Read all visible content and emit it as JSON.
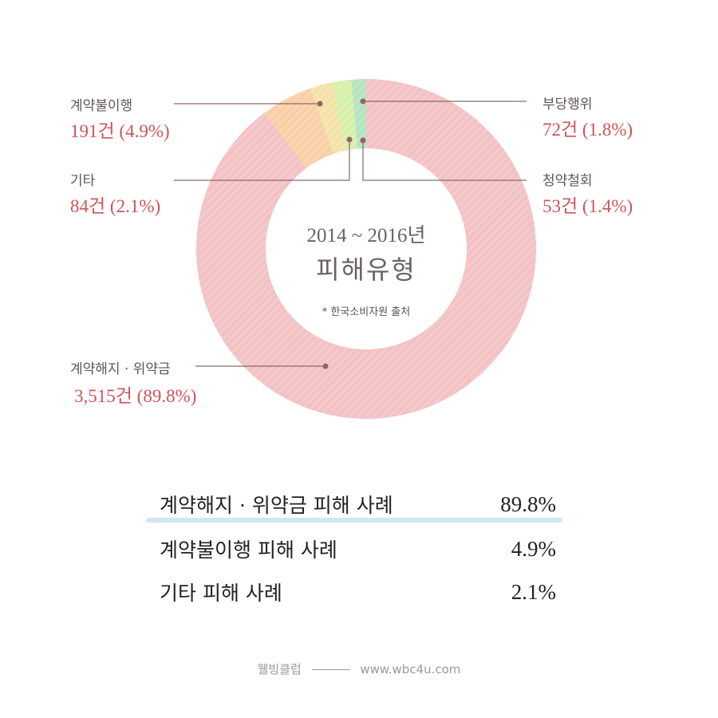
{
  "chart_data": {
    "type": "pie",
    "variant": "donut",
    "title": "2014 ~ 2016년 피해유형",
    "subtitle": "* 한국소비자원 출처",
    "categories": [
      "계약해지 · 위약금",
      "계약불이행",
      "기타",
      "부당행위",
      "청약철회"
    ],
    "counts": [
      3515,
      191,
      84,
      72,
      53
    ],
    "values": [
      89.8,
      4.9,
      2.1,
      1.8,
      1.4
    ],
    "unit": "%",
    "colors": [
      "#f2c2c4",
      "#f9cfa6",
      "#f3e3a8",
      "#d6efaa",
      "#b5e3bf"
    ],
    "legend_position": "callouts"
  },
  "center": {
    "years": "2014 ~ 2016년",
    "title": "피해유형",
    "note": "* 한국소비자원 출처"
  },
  "callouts": [
    {
      "name": "계약불이행",
      "value": "191건 (4.9%)"
    },
    {
      "name": "기타",
      "value": "84건 (2.1%)"
    },
    {
      "name": "부당행위",
      "value": "72건 (1.8%)"
    },
    {
      "name": "청약철회",
      "value": "53건 (1.4%)"
    },
    {
      "name": "계약해지 · 위약금",
      "value": "3,515건 (89.8%)"
    }
  ],
  "summary": [
    {
      "label": "계약해지 · 위약금 피해 사례",
      "value": "89.8%"
    },
    {
      "label": "계약불이행 피해 사례",
      "value": "4.9%"
    },
    {
      "label": "기타 피해 사례",
      "value": "2.1%"
    }
  ],
  "footer": {
    "brand": "웰빙클럽",
    "url": "www.wbc4u.com"
  }
}
